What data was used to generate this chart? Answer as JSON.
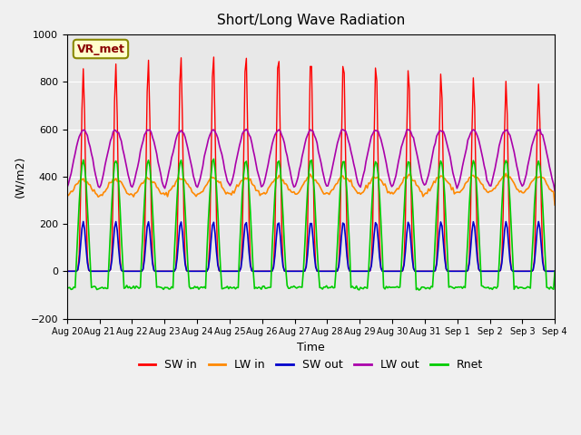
{
  "title": "Short/Long Wave Radiation",
  "xlabel": "Time",
  "ylabel": "(W/m2)",
  "ylim": [
    -200,
    1000
  ],
  "n_days": 15,
  "legend_labels": [
    "SW in",
    "LW in",
    "SW out",
    "LW out",
    "Rnet"
  ],
  "legend_colors": [
    "#ff0000",
    "#ff8800",
    "#0000cc",
    "#aa00aa",
    "#00cc00"
  ],
  "annotation_text": "VR_met",
  "annotation_bg": "#ffffcc",
  "annotation_border": "#888800",
  "plot_bg": "#e8e8e8",
  "grid_color": "#ffffff",
  "sw_in_peak": 930,
  "lw_in_night": 320,
  "sw_out_peak": 210,
  "lw_out_night": 355.0,
  "rnet_peak": 470,
  "rnet_night": -70.0,
  "tick_labels": [
    "Aug 20",
    "Aug 21",
    "Aug 22",
    "Aug 23",
    "Aug 24",
    "Aug 25",
    "Aug 26",
    "Aug 27",
    "Aug 28",
    "Aug 29",
    "Aug 30",
    "Aug 31",
    "Sep 1",
    "Sep 2",
    "Sep 3",
    "Sep 4"
  ]
}
